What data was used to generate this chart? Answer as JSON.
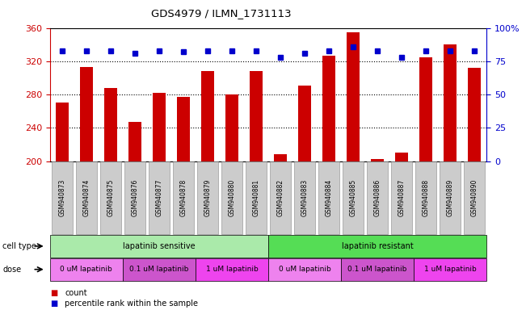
{
  "title": "GDS4979 / ILMN_1731113",
  "samples": [
    "GSM940873",
    "GSM940874",
    "GSM940875",
    "GSM940876",
    "GSM940877",
    "GSM940878",
    "GSM940879",
    "GSM940880",
    "GSM940881",
    "GSM940882",
    "GSM940883",
    "GSM940884",
    "GSM940885",
    "GSM940886",
    "GSM940887",
    "GSM940888",
    "GSM940889",
    "GSM940890"
  ],
  "bar_values": [
    270,
    313,
    288,
    247,
    282,
    277,
    308,
    280,
    308,
    208,
    291,
    327,
    355,
    203,
    210,
    325,
    340,
    312
  ],
  "percentile_values": [
    83,
    83,
    83,
    81,
    83,
    82,
    83,
    83,
    83,
    78,
    81,
    83,
    86,
    83,
    78,
    83,
    83,
    83
  ],
  "bar_color": "#cc0000",
  "dot_color": "#0000cc",
  "ylim_left": [
    200,
    360
  ],
  "ylim_right": [
    0,
    100
  ],
  "yticks_left": [
    200,
    240,
    280,
    320,
    360
  ],
  "yticks_right": [
    0,
    25,
    50,
    75,
    100
  ],
  "cell_type_groups": [
    {
      "label": "lapatinib sensitive",
      "start": 0,
      "end": 9,
      "color": "#aaeaaa"
    },
    {
      "label": "lapatinib resistant",
      "start": 9,
      "end": 18,
      "color": "#55dd55"
    }
  ],
  "dose_groups": [
    {
      "label": "0 uM lapatinib",
      "start": 0,
      "end": 3,
      "color": "#ee82ee"
    },
    {
      "label": "0.1 uM lapatinib",
      "start": 3,
      "end": 6,
      "color": "#cc55cc"
    },
    {
      "label": "1 uM lapatinib",
      "start": 6,
      "end": 9,
      "color": "#ee44ee"
    },
    {
      "label": "0 uM lapatinib",
      "start": 9,
      "end": 12,
      "color": "#ee82ee"
    },
    {
      "label": "0.1 uM lapatinib",
      "start": 12,
      "end": 15,
      "color": "#cc55cc"
    },
    {
      "label": "1 uM lapatinib",
      "start": 15,
      "end": 18,
      "color": "#ee44ee"
    }
  ],
  "cell_type_label": "cell type",
  "dose_label": "dose",
  "legend_count_color": "#cc0000",
  "legend_dot_color": "#0000cc",
  "background_color": "#ffffff",
  "tick_label_color_left": "#cc0000",
  "tick_label_color_right": "#0000cc",
  "bar_width": 0.55,
  "xtick_bg_color": "#cccccc",
  "xtick_border_color": "#888888"
}
